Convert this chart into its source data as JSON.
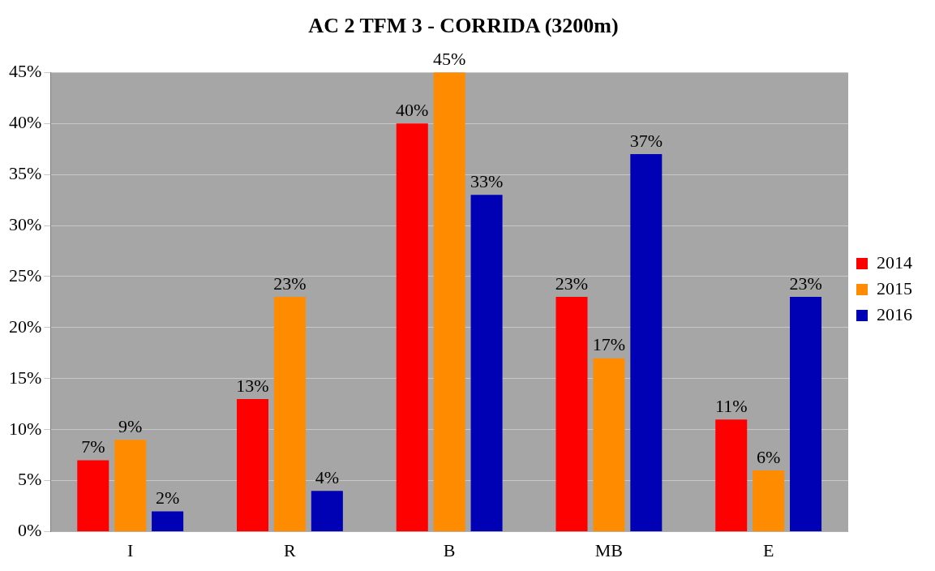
{
  "chart_data": {
    "type": "bar",
    "title": "AC 2 TFM 3 - CORRIDA (3200m)",
    "categories": [
      "I",
      "R",
      "B",
      "MB",
      "E"
    ],
    "series": [
      {
        "name": "2014",
        "color": "#ff0000",
        "values": [
          7,
          13,
          40,
          23,
          11
        ],
        "value_labels": [
          "7%",
          "13%",
          "40%",
          "23%",
          "11%"
        ]
      },
      {
        "name": "2015",
        "color": "#ff8c00",
        "values": [
          9,
          23,
          45,
          17,
          6
        ],
        "value_labels": [
          "9%",
          "23%",
          "45%",
          "17%",
          "6%"
        ]
      },
      {
        "name": "2016",
        "color": "#0000b4",
        "values": [
          2,
          4,
          33,
          37,
          23
        ],
        "value_labels": [
          "2%",
          "4%",
          "33%",
          "37%",
          "23%"
        ]
      }
    ],
    "ylim": [
      0,
      45
    ],
    "yticks": [
      {
        "value": 0,
        "label": "0%"
      },
      {
        "value": 5,
        "label": "5%"
      },
      {
        "value": 10,
        "label": "10%"
      },
      {
        "value": 15,
        "label": "15%"
      },
      {
        "value": 20,
        "label": "20%"
      },
      {
        "value": 25,
        "label": "25%"
      },
      {
        "value": 30,
        "label": "30%"
      },
      {
        "value": 35,
        "label": "35%"
      },
      {
        "value": 40,
        "label": "40%"
      },
      {
        "value": 45,
        "label": "45%"
      }
    ],
    "grid": "y",
    "legend": "right"
  }
}
